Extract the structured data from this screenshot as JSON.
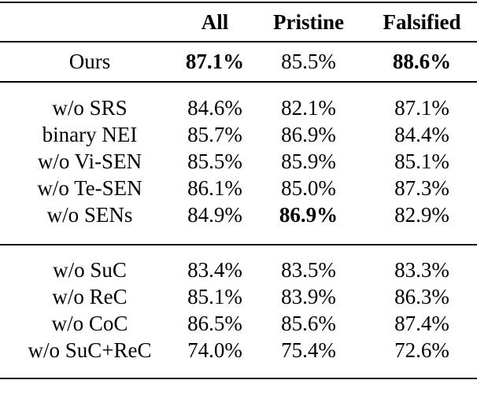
{
  "page": {
    "background_color": "#ffffff",
    "text_color": "#000000",
    "rule_color": "#000000"
  },
  "table": {
    "columns": [
      {
        "label": ""
      },
      {
        "label": "All"
      },
      {
        "label": "Pristine"
      },
      {
        "label": "Falsified"
      }
    ],
    "sections": [
      {
        "rows": [
          {
            "label": "Ours",
            "cells": [
              {
                "text": "87.1%",
                "bold": true
              },
              {
                "text": "85.5%",
                "bold": false
              },
              {
                "text": "88.6%",
                "bold": true
              }
            ]
          }
        ]
      },
      {
        "rows": [
          {
            "label": "w/o SRS",
            "cells": [
              {
                "text": "84.6%",
                "bold": false
              },
              {
                "text": "82.1%",
                "bold": false
              },
              {
                "text": "87.1%",
                "bold": false
              }
            ]
          },
          {
            "label": "binary NEI",
            "cells": [
              {
                "text": "85.7%",
                "bold": false
              },
              {
                "text": "86.9%",
                "bold": false
              },
              {
                "text": "84.4%",
                "bold": false
              }
            ]
          },
          {
            "label": "w/o Vi-SEN",
            "cells": [
              {
                "text": "85.5%",
                "bold": false
              },
              {
                "text": "85.9%",
                "bold": false
              },
              {
                "text": "85.1%",
                "bold": false
              }
            ]
          },
          {
            "label": "w/o Te-SEN",
            "cells": [
              {
                "text": "86.1%",
                "bold": false
              },
              {
                "text": "85.0%",
                "bold": false
              },
              {
                "text": "87.3%",
                "bold": false
              }
            ]
          },
          {
            "label": "w/o SENs",
            "cells": [
              {
                "text": "84.9%",
                "bold": false
              },
              {
                "text": "86.9%",
                "bold": true
              },
              {
                "text": "82.9%",
                "bold": false
              }
            ]
          }
        ]
      },
      {
        "rows": [
          {
            "label": "w/o SuC",
            "cells": [
              {
                "text": "83.4%",
                "bold": false
              },
              {
                "text": "83.5%",
                "bold": false
              },
              {
                "text": "83.3%",
                "bold": false
              }
            ]
          },
          {
            "label": "w/o ReC",
            "cells": [
              {
                "text": "85.1%",
                "bold": false
              },
              {
                "text": "83.9%",
                "bold": false
              },
              {
                "text": "86.3%",
                "bold": false
              }
            ]
          },
          {
            "label": "w/o CoC",
            "cells": [
              {
                "text": "86.5%",
                "bold": false
              },
              {
                "text": "85.6%",
                "bold": false
              },
              {
                "text": "87.4%",
                "bold": false
              }
            ]
          },
          {
            "label": "w/o SuC+ReC",
            "cells": [
              {
                "text": "74.0%",
                "bold": false
              },
              {
                "text": "75.4%",
                "bold": false
              },
              {
                "text": "72.6%",
                "bold": false
              }
            ]
          }
        ]
      }
    ]
  }
}
